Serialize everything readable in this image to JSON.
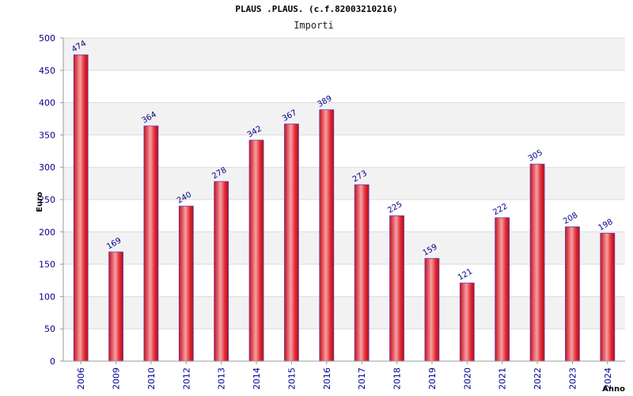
{
  "chart_data": {
    "type": "bar",
    "title": "PLAUS .PLAUS. (c.f.82003210216)",
    "subtitle": "Importi",
    "xlabel": "Anno",
    "ylabel": "Euro",
    "categories": [
      "2006",
      "2009",
      "2010",
      "2012",
      "2013",
      "2014",
      "2015",
      "2016",
      "2017",
      "2018",
      "2019",
      "2020",
      "2021",
      "2022",
      "2023",
      "2024"
    ],
    "values": [
      474,
      169,
      364,
      240,
      278,
      342,
      367,
      389,
      273,
      225,
      159,
      121,
      222,
      305,
      208,
      198
    ],
    "data_labels": [
      "474",
      "169",
      "364",
      "240",
      "278",
      "342",
      "367",
      "389",
      "273",
      "225",
      "159",
      "121",
      "222",
      "305",
      "208",
      "198"
    ],
    "ylim": [
      0,
      500
    ],
    "yticks": [
      "0",
      "50",
      "100",
      "150",
      "200",
      "250",
      "300",
      "350",
      "400",
      "450",
      "500"
    ],
    "grid": true,
    "bar_color": "#e0202a",
    "band_color": "#f2f2f2"
  }
}
